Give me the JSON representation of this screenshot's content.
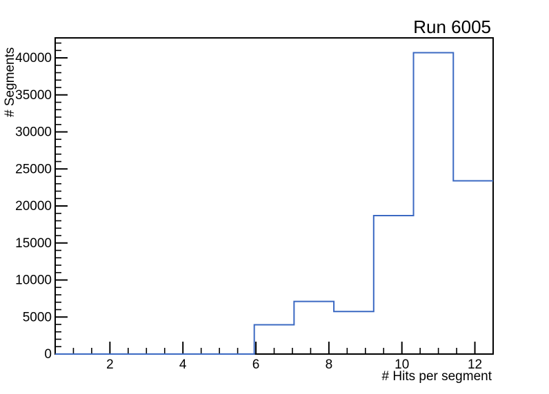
{
  "chart_data": {
    "type": "bar",
    "subtype": "step-histogram-outline",
    "title": "Run 6005",
    "xlabel": "# Hits per segment",
    "ylabel": "# Segments",
    "xlim": [
      0.5,
      12.5
    ],
    "ylim": [
      0,
      42700
    ],
    "bin_edges": [
      0.5,
      1.591,
      2.682,
      3.773,
      4.864,
      5.955,
      7.045,
      8.136,
      9.227,
      10.318,
      11.409,
      12.5
    ],
    "values": [
      0,
      0,
      0,
      0,
      0,
      3950,
      7100,
      5750,
      18700,
      40700,
      23400
    ],
    "x_major_ticks": [
      2,
      4,
      6,
      8,
      10,
      12
    ],
    "x_minor_tick_step": 0.5,
    "y_major_ticks": [
      0,
      5000,
      10000,
      15000,
      20000,
      25000,
      30000,
      35000,
      40000
    ],
    "y_minor_tick_step": 1000,
    "grid": false,
    "line_color": "#3a68c2",
    "frame_color": "#000000",
    "text_color": "#000000",
    "background_color": "#ffffff"
  }
}
